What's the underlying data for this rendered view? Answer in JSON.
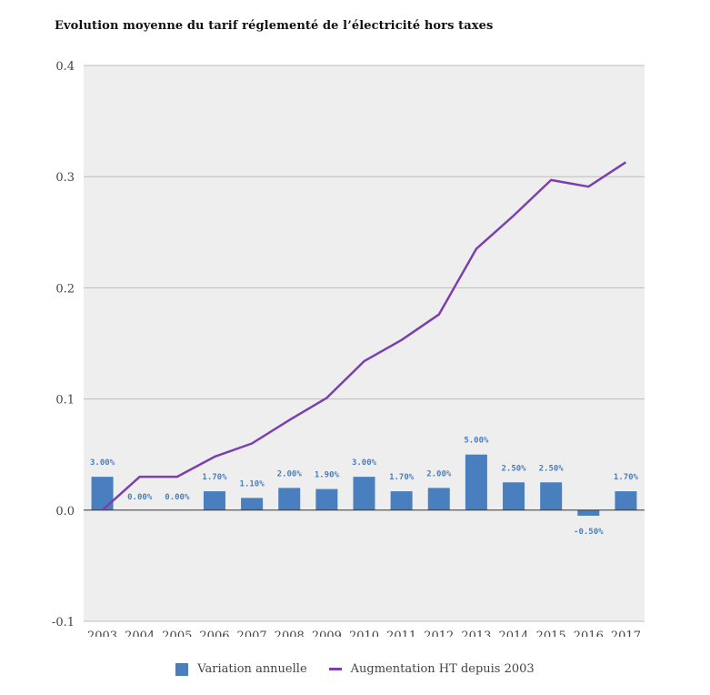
{
  "chart_data": {
    "type": "bar+line",
    "title": "Evolution moyenne du tarif réglementé de l’électricité hors taxes",
    "categories": [
      "2003",
      "2004",
      "2005",
      "2006",
      "2007",
      "2008",
      "2009",
      "2010",
      "2011",
      "2012",
      "2013",
      "2014",
      "2015",
      "2016",
      "2017"
    ],
    "ylim": [
      -0.1,
      0.4
    ],
    "yticks": [
      "-0.1",
      "0.0",
      "0.1",
      "0.2",
      "0.3",
      "0.4"
    ],
    "ytick_values": [
      -0.1,
      0.0,
      0.1,
      0.2,
      0.3,
      0.4
    ],
    "grid": true,
    "legend_position": "bottom-center",
    "series": [
      {
        "name": "Variation annuelle",
        "kind": "bar",
        "color": "#4a7fbf",
        "values": [
          0.03,
          0.0,
          0.0,
          0.017,
          0.011,
          0.02,
          0.019,
          0.03,
          0.017,
          0.02,
          0.05,
          0.025,
          0.025,
          -0.005,
          0.017
        ],
        "labels": [
          "3.00%",
          "0.00%",
          "0.00%",
          "1.70%",
          "1.10%",
          "2.00%",
          "1.90%",
          "3.00%",
          "1.70%",
          "2.00%",
          "5.00%",
          "2.50%",
          "2.50%",
          "-0.50%",
          "1.70%"
        ]
      },
      {
        "name": "Augmentation HT depuis 2003",
        "kind": "line",
        "color": "#7b3fb0",
        "values": [
          0.0,
          0.03,
          0.03,
          0.048,
          0.06,
          0.081,
          0.101,
          0.134,
          0.153,
          0.176,
          0.235,
          0.265,
          0.297,
          0.291,
          0.313
        ]
      }
    ]
  }
}
